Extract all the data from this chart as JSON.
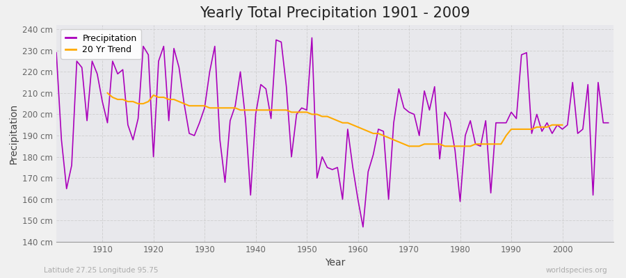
{
  "title": "Yearly Total Precipitation 1901 - 2009",
  "xlabel": "Year",
  "ylabel": "Precipitation",
  "subtitle_left": "Latitude 27.25 Longitude 95.75",
  "subtitle_right": "worldspecies.org",
  "years": [
    1901,
    1902,
    1903,
    1904,
    1905,
    1906,
    1907,
    1908,
    1909,
    1910,
    1911,
    1912,
    1913,
    1914,
    1915,
    1916,
    1917,
    1918,
    1919,
    1920,
    1921,
    1922,
    1923,
    1924,
    1925,
    1926,
    1927,
    1928,
    1929,
    1930,
    1931,
    1932,
    1933,
    1934,
    1935,
    1936,
    1937,
    1938,
    1939,
    1940,
    1941,
    1942,
    1943,
    1944,
    1945,
    1946,
    1947,
    1948,
    1949,
    1950,
    1951,
    1952,
    1953,
    1954,
    1955,
    1956,
    1957,
    1958,
    1959,
    1960,
    1961,
    1962,
    1963,
    1964,
    1965,
    1966,
    1967,
    1968,
    1969,
    1970,
    1971,
    1972,
    1973,
    1974,
    1975,
    1976,
    1977,
    1978,
    1979,
    1980,
    1981,
    1982,
    1983,
    1984,
    1985,
    1986,
    1987,
    1988,
    1989,
    1990,
    1991,
    1992,
    1993,
    1994,
    1995,
    1996,
    1997,
    1998,
    1999,
    2000,
    2001,
    2002,
    2003,
    2004,
    2005,
    2006,
    2007,
    2008,
    2009
  ],
  "precip": [
    229,
    188,
    165,
    176,
    225,
    222,
    197,
    225,
    219,
    206,
    196,
    225,
    219,
    221,
    195,
    188,
    198,
    232,
    228,
    180,
    225,
    232,
    197,
    231,
    222,
    205,
    191,
    190,
    196,
    203,
    220,
    232,
    188,
    168,
    197,
    204,
    220,
    198,
    162,
    200,
    214,
    212,
    198,
    235,
    234,
    213,
    180,
    200,
    203,
    202,
    236,
    170,
    180,
    175,
    174,
    175,
    160,
    193,
    175,
    160,
    147,
    173,
    181,
    193,
    192,
    160,
    196,
    212,
    203,
    201,
    200,
    190,
    211,
    202,
    213,
    179,
    201,
    197,
    183,
    159,
    190,
    197,
    186,
    185,
    197,
    163,
    196,
    196,
    196,
    201,
    198,
    228,
    229,
    191,
    200,
    192,
    196,
    191,
    195,
    193,
    195,
    215,
    191,
    193,
    214,
    162,
    215,
    196,
    196
  ],
  "trend_years": [
    1911,
    1912,
    1913,
    1914,
    1915,
    1916,
    1917,
    1918,
    1919,
    1920,
    1921,
    1922,
    1923,
    1924,
    1925,
    1926,
    1927,
    1928,
    1929,
    1930,
    1931,
    1932,
    1933,
    1934,
    1935,
    1936,
    1937,
    1938,
    1939,
    1940,
    1941,
    1942,
    1943,
    1944,
    1945,
    1946,
    1947,
    1948,
    1949,
    1950,
    1951,
    1952,
    1953,
    1954,
    1955,
    1956,
    1957,
    1958,
    1959,
    1960,
    1961,
    1962,
    1963,
    1964,
    1965,
    1966,
    1967,
    1968,
    1969,
    1970,
    1971,
    1972,
    1973,
    1974,
    1975,
    1976,
    1977,
    1978,
    1979,
    1980,
    1981,
    1982,
    1983,
    1984,
    1985,
    1986,
    1987,
    1988,
    1989,
    1990,
    1991,
    1992,
    1993,
    1994,
    1995,
    1996,
    1997,
    1998,
    1999,
    2000
  ],
  "trend": [
    210,
    208,
    207,
    207,
    206,
    206,
    205,
    205,
    206,
    209,
    208,
    208,
    207,
    207,
    206,
    205,
    204,
    204,
    204,
    204,
    203,
    203,
    203,
    203,
    203,
    203,
    202,
    202,
    202,
    202,
    202,
    202,
    202,
    202,
    202,
    202,
    201,
    201,
    201,
    201,
    200,
    200,
    199,
    199,
    198,
    197,
    196,
    196,
    195,
    194,
    193,
    192,
    191,
    191,
    190,
    189,
    188,
    187,
    186,
    185,
    185,
    185,
    186,
    186,
    186,
    186,
    185,
    185,
    185,
    185,
    185,
    185,
    186,
    186,
    186,
    186,
    186,
    186,
    190,
    193,
    193,
    193,
    193,
    193,
    194,
    194,
    194,
    195,
    195,
    195
  ],
  "precip_color": "#aa00bb",
  "trend_color": "#ffaa00",
  "bg_color": "#f0f0f0",
  "plot_bg_color": "#e8e8ec",
  "grid_color": "#cccccc",
  "ylim": [
    140,
    242
  ],
  "yticks": [
    140,
    150,
    160,
    170,
    180,
    190,
    200,
    210,
    220,
    230,
    240
  ],
  "ytick_labels": [
    "140 cm",
    "150 cm",
    "160 cm",
    "170 cm",
    "180 cm",
    "190 cm",
    "200 cm",
    "210 cm",
    "220 cm",
    "230 cm",
    "240 cm"
  ],
  "xticks": [
    1910,
    1920,
    1930,
    1940,
    1950,
    1960,
    1970,
    1980,
    1990,
    2000
  ],
  "title_fontsize": 15,
  "axis_label_fontsize": 10,
  "tick_fontsize": 8.5,
  "legend_fontsize": 9,
  "precip_linewidth": 1.2,
  "trend_linewidth": 1.5
}
